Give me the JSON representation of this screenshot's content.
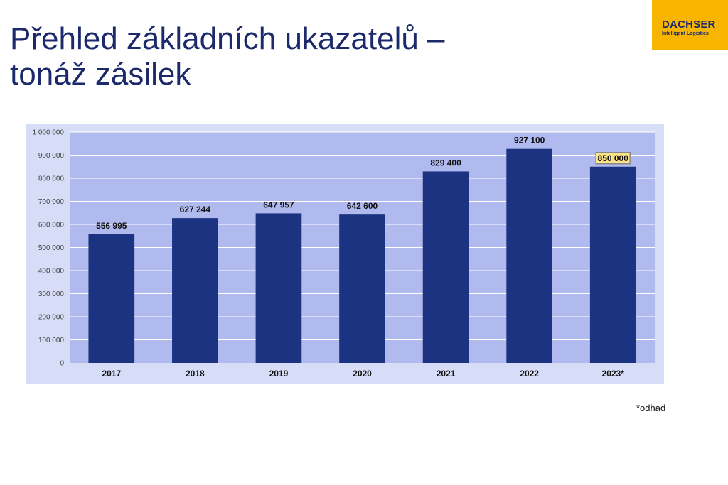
{
  "title": {
    "line1": "Přehled základních ukazatelů –",
    "line2": "tonáž zásilek"
  },
  "logo": {
    "brand": "DACHSER",
    "tagline": "Intelligent Logistics"
  },
  "footnote": "*odhad",
  "colors": {
    "bar": "#1c3382",
    "plot_bg": "#b0baee",
    "outer_bg": "#d7dcf7",
    "gridline": "#ffffff",
    "highlight_label_bg": "#fbe38a"
  },
  "chart_data": {
    "type": "bar",
    "categories": [
      "2017",
      "2018",
      "2019",
      "2020",
      "2021",
      "2022",
      "2023*"
    ],
    "values": [
      556995,
      627244,
      647957,
      642600,
      829400,
      927100,
      850000
    ],
    "value_labels": [
      "556 995",
      "627 244",
      "647 957",
      "642 600",
      "829 400",
      "927 100",
      "850 000"
    ],
    "highlighted_index": 6,
    "ylim": [
      0,
      1000000
    ],
    "yticks": [
      0,
      100000,
      200000,
      300000,
      400000,
      500000,
      600000,
      700000,
      800000,
      900000,
      1000000
    ],
    "ytick_labels": [
      "0",
      "100 000",
      "200 000",
      "300 000",
      "400 000",
      "500 000",
      "600 000",
      "700 000",
      "800 000",
      "900 000",
      "1 000 000"
    ],
    "grid": true,
    "legend": "none",
    "title": "",
    "xlabel": "",
    "ylabel": ""
  }
}
